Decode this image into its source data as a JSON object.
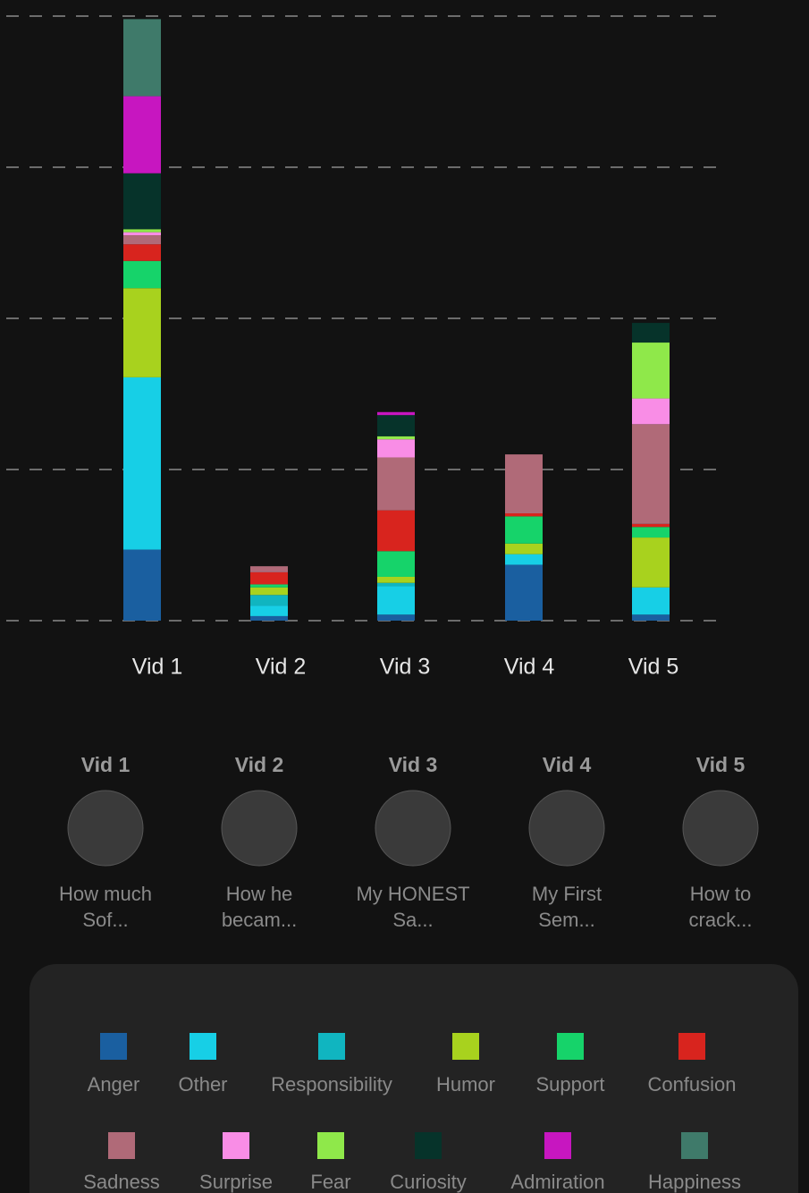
{
  "chart_data": {
    "type": "bar",
    "stacked": true,
    "categories": [
      "Vid 1",
      "Vid 2",
      "Vid 3",
      "Vid 4",
      "Vid 5"
    ],
    "ylim": [
      0,
      40
    ],
    "yticks": [
      0,
      10,
      20,
      30,
      40
    ],
    "grid": true,
    "series": [
      {
        "name": "Anger",
        "color": "#1a5fa0",
        "values": [
          4.7,
          0.3,
          0.4,
          3.7,
          0.4
        ]
      },
      {
        "name": "Other",
        "color": "#17cfe6",
        "values": [
          11.4,
          0.7,
          1.9,
          0.7,
          1.8
        ]
      },
      {
        "name": "Responsibility",
        "color": "#10b5c0",
        "values": [
          0,
          0.7,
          0.2,
          0,
          0
        ]
      },
      {
        "name": "Humor",
        "color": "#a8d21e",
        "values": [
          5.9,
          0.5,
          0.4,
          0.7,
          3.3
        ]
      },
      {
        "name": "Support",
        "color": "#16d36a",
        "values": [
          1.8,
          0.2,
          1.7,
          1.8,
          0.7
        ]
      },
      {
        "name": "Confusion",
        "color": "#d8241e",
        "values": [
          1.1,
          0.8,
          2.7,
          0.2,
          0.2
        ]
      },
      {
        "name": "Sadness",
        "color": "#b06a78",
        "values": [
          0.6,
          0.4,
          3.5,
          3.9,
          6.6
        ]
      },
      {
        "name": "Surprise",
        "color": "#f98de6",
        "values": [
          0.2,
          0,
          1.2,
          0,
          1.7
        ]
      },
      {
        "name": "Fear",
        "color": "#8fe84a",
        "values": [
          0.2,
          0,
          0.2,
          0,
          3.7
        ]
      },
      {
        "name": "Curiosity",
        "color": "#06332a",
        "values": [
          3.7,
          0,
          1.4,
          0,
          1.3
        ]
      },
      {
        "name": "Admiration",
        "color": "#c716c0",
        "values": [
          5.1,
          0,
          0.2,
          0,
          0
        ]
      },
      {
        "name": "Happiness",
        "color": "#3f7a6a",
        "values": [
          5.1,
          0,
          0,
          0,
          0
        ]
      }
    ]
  },
  "videos": [
    {
      "label": "Vid 1",
      "title": [
        "How much",
        "Sof..."
      ]
    },
    {
      "label": "Vid 2",
      "title": [
        "How he",
        "becam..."
      ]
    },
    {
      "label": "Vid 3",
      "title": [
        "My HONEST",
        "Sa..."
      ]
    },
    {
      "label": "Vid 4",
      "title": [
        "My First",
        "Sem..."
      ]
    },
    {
      "label": "Vid 5",
      "title": [
        "How to",
        "crack..."
      ]
    }
  ]
}
